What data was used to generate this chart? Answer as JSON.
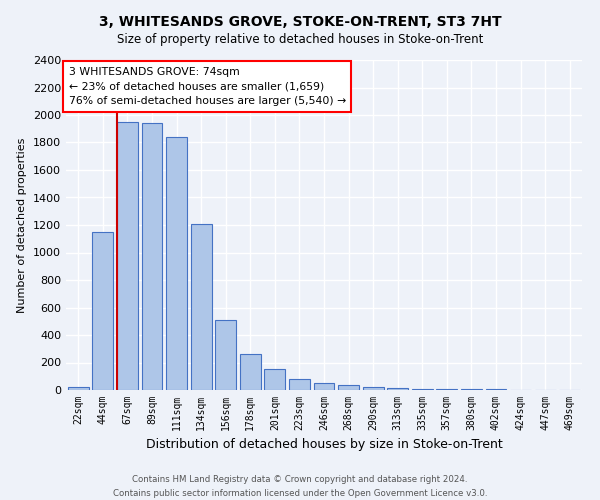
{
  "title": "3, WHITESANDS GROVE, STOKE-ON-TRENT, ST3 7HT",
  "subtitle": "Size of property relative to detached houses in Stoke-on-Trent",
  "xlabel": "Distribution of detached houses by size in Stoke-on-Trent",
  "ylabel": "Number of detached properties",
  "bar_labels": [
    "22sqm",
    "44sqm",
    "67sqm",
    "89sqm",
    "111sqm",
    "134sqm",
    "156sqm",
    "178sqm",
    "201sqm",
    "223sqm",
    "246sqm",
    "268sqm",
    "290sqm",
    "313sqm",
    "335sqm",
    "357sqm",
    "380sqm",
    "402sqm",
    "424sqm",
    "447sqm",
    "469sqm"
  ],
  "bar_values": [
    25,
    1150,
    1950,
    1940,
    1840,
    1210,
    510,
    265,
    155,
    80,
    50,
    40,
    20,
    15,
    10,
    5,
    5,
    5,
    2,
    2,
    2
  ],
  "bar_color": "#aec6e8",
  "bar_edge_color": "#4472c4",
  "annotation_text": "3 WHITESANDS GROVE: 74sqm\n← 23% of detached houses are smaller (1,659)\n76% of semi-detached houses are larger (5,540) →",
  "annotation_box_color": "white",
  "annotation_box_edge_color": "red",
  "red_line_color": "#cc0000",
  "ylim": [
    0,
    2400
  ],
  "yticks": [
    0,
    200,
    400,
    600,
    800,
    1000,
    1200,
    1400,
    1600,
    1800,
    2000,
    2200,
    2400
  ],
  "footnote1": "Contains HM Land Registry data © Crown copyright and database right 2024.",
  "footnote2": "Contains public sector information licensed under the Open Government Licence v3.0.",
  "bg_color": "#eef2f9",
  "grid_color": "white",
  "property_sqm": 74
}
